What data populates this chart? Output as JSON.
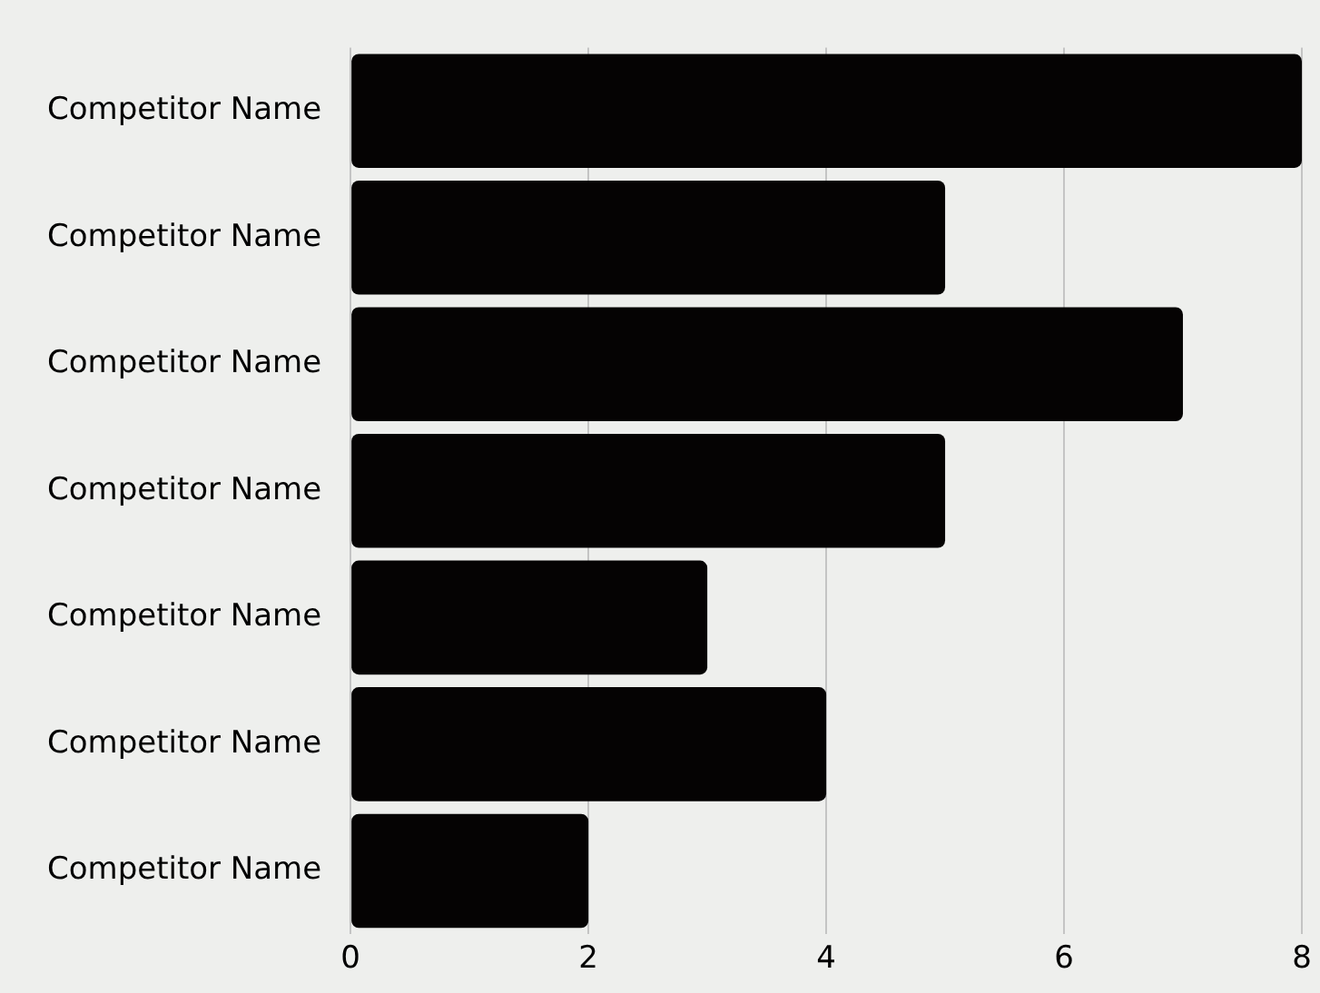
{
  "chart_data": {
    "type": "bar",
    "orientation": "horizontal",
    "categories": [
      "Competitor Name",
      "Competitor Name",
      "Competitor Name",
      "Competitor Name",
      "Competitor Name",
      "Competitor Name",
      "Competitor Name"
    ],
    "values": [
      8,
      5,
      7,
      5,
      3,
      4,
      2
    ],
    "color": "#050303",
    "xlim": [
      0,
      8
    ],
    "xticks": [
      0,
      2,
      4,
      6,
      8
    ],
    "grid": "x",
    "legend": false
  }
}
